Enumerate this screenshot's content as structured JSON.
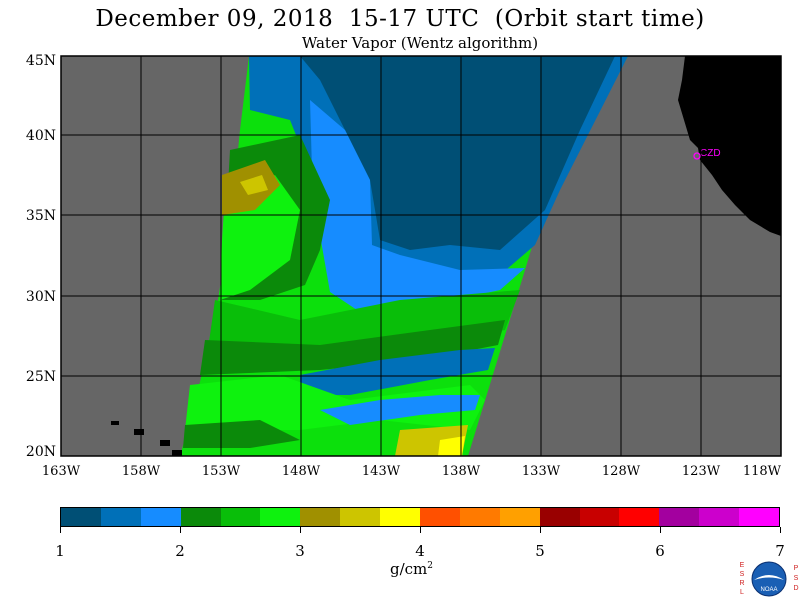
{
  "title": "December 09, 2018  15-17 UTC  (Orbit start time)",
  "subtitle": "Water Vapor (Wentz algorithm)",
  "map": {
    "lat_labels": [
      "45N",
      "40N",
      "35N",
      "30N",
      "25N",
      "20N"
    ],
    "lon_labels": [
      "163W",
      "158W",
      "153W",
      "148W",
      "143W",
      "138W",
      "133W",
      "128W",
      "123W",
      "118W"
    ],
    "station_label": "CZD",
    "colors": {
      "no_data": "#666666",
      "land": "#000000",
      "grid": "#000000",
      "station": "#ff00ff"
    }
  },
  "colorbar": {
    "tick_labels": [
      "1",
      "2",
      "3",
      "4",
      "5",
      "6",
      "7"
    ],
    "units": "g/cm",
    "units_exp": "2",
    "colors": [
      "#004f75",
      "#0070b8",
      "#168cff",
      "#0b8a0a",
      "#09be09",
      "#0ef20e",
      "#a09000",
      "#cdc500",
      "#ffff00",
      "#ff5000",
      "#ff7a00",
      "#ffa000",
      "#990000",
      "#c80000",
      "#ff0000",
      "#a3009f",
      "#cc00cc",
      "#ff00ff"
    ]
  },
  "logo": {
    "left_letters": [
      "E",
      "S",
      "R",
      "L"
    ],
    "right_letters": [
      "P",
      "S",
      "D"
    ],
    "center_text": "NOAA"
  }
}
